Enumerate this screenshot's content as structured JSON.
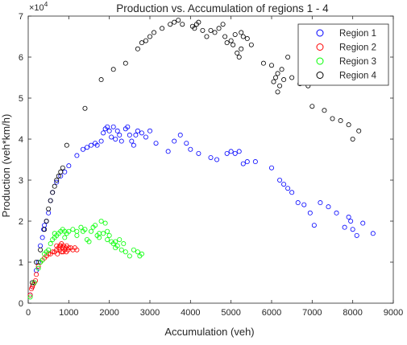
{
  "chart_data": {
    "type": "scatter",
    "title": "Production vs. Accumulation of regions 1 - 4",
    "xlabel": "Accumulation (veh)",
    "ylabel": "Production (veh*km/h)",
    "y_exponent_label": "×10",
    "y_exponent_power": "4",
    "xlim": [
      0,
      9000
    ],
    "ylim": [
      0,
      7
    ],
    "x_ticks": [
      0,
      1000,
      2000,
      3000,
      4000,
      5000,
      6000,
      7000,
      8000,
      9000
    ],
    "x_tick_labels": [
      "0",
      "1000",
      "2000",
      "3000",
      "4000",
      "5000",
      "6000",
      "7000",
      "8000",
      "9000"
    ],
    "y_ticks": [
      0,
      1,
      2,
      3,
      4,
      5,
      6,
      7
    ],
    "y_tick_labels": [
      "0",
      "1",
      "2",
      "3",
      "4",
      "5",
      "6",
      "7"
    ],
    "grid": false,
    "legend_position": "top-right",
    "marker": "open-circle",
    "series": [
      {
        "name": "Region 1",
        "color": "#0000ff",
        "points": [
          [
            50,
            0.2
          ],
          [
            100,
            0.4
          ],
          [
            150,
            0.5
          ],
          [
            200,
            0.8
          ],
          [
            250,
            1.0
          ],
          [
            300,
            1.4
          ],
          [
            350,
            1.6
          ],
          [
            380,
            1.8
          ],
          [
            400,
            1.9
          ],
          [
            450,
            2.0
          ],
          [
            500,
            2.2
          ],
          [
            550,
            2.5
          ],
          [
            600,
            2.7
          ],
          [
            700,
            2.95
          ],
          [
            800,
            3.1
          ],
          [
            900,
            3.2
          ],
          [
            1000,
            3.35
          ],
          [
            1200,
            3.6
          ],
          [
            1350,
            3.75
          ],
          [
            1450,
            3.8
          ],
          [
            1550,
            3.85
          ],
          [
            1650,
            3.9
          ],
          [
            1700,
            3.85
          ],
          [
            1800,
            3.95
          ],
          [
            1850,
            4.15
          ],
          [
            1900,
            4.25
          ],
          [
            1950,
            4.3
          ],
          [
            2000,
            4.2
          ],
          [
            2050,
            4.05
          ],
          [
            2100,
            4.3
          ],
          [
            2150,
            4.0
          ],
          [
            2200,
            4.2
          ],
          [
            2250,
            4.1
          ],
          [
            2300,
            3.95
          ],
          [
            2400,
            4.25
          ],
          [
            2450,
            4.3
          ],
          [
            2500,
            4.1
          ],
          [
            2550,
            3.95
          ],
          [
            2600,
            3.85
          ],
          [
            2650,
            4.1
          ],
          [
            2700,
            4.2
          ],
          [
            2800,
            4.15
          ],
          [
            2900,
            4.05
          ],
          [
            3000,
            4.2
          ],
          [
            3150,
            3.9
          ],
          [
            3450,
            3.7
          ],
          [
            3600,
            3.95
          ],
          [
            3750,
            4.1
          ],
          [
            3900,
            3.9
          ],
          [
            4000,
            3.75
          ],
          [
            4200,
            3.65
          ],
          [
            4500,
            3.55
          ],
          [
            4650,
            3.5
          ],
          [
            4900,
            3.65
          ],
          [
            5000,
            3.7
          ],
          [
            5100,
            3.65
          ],
          [
            5200,
            3.7
          ],
          [
            5300,
            3.4
          ],
          [
            5400,
            3.45
          ],
          [
            5600,
            3.45
          ],
          [
            6000,
            3.3
          ],
          [
            6200,
            3.0
          ],
          [
            6300,
            2.9
          ],
          [
            6400,
            2.8
          ],
          [
            6500,
            2.7
          ],
          [
            6650,
            2.45
          ],
          [
            6800,
            2.4
          ],
          [
            6950,
            2.2
          ],
          [
            7050,
            1.9
          ],
          [
            7200,
            2.45
          ],
          [
            7400,
            2.35
          ],
          [
            7600,
            2.2
          ],
          [
            7800,
            1.85
          ],
          [
            7900,
            2.1
          ],
          [
            7950,
            2.0
          ],
          [
            8000,
            1.8
          ],
          [
            8100,
            1.65
          ],
          [
            8250,
            1.95
          ],
          [
            8500,
            1.7
          ]
        ]
      },
      {
        "name": "Region 2",
        "color": "#ff0000",
        "points": [
          [
            50,
            0.2
          ],
          [
            80,
            0.35
          ],
          [
            100,
            0.4
          ],
          [
            120,
            0.45
          ],
          [
            150,
            0.5
          ],
          [
            180,
            0.55
          ],
          [
            200,
            0.7
          ],
          [
            250,
            0.9
          ],
          [
            300,
            1.0
          ],
          [
            350,
            1.05
          ],
          [
            400,
            1.1
          ],
          [
            450,
            1.15
          ],
          [
            500,
            1.2
          ],
          [
            550,
            1.2
          ],
          [
            600,
            1.25
          ],
          [
            650,
            1.25
          ],
          [
            700,
            1.3
          ],
          [
            720,
            1.2
          ],
          [
            750,
            1.35
          ],
          [
            780,
            1.3
          ],
          [
            800,
            1.4
          ],
          [
            820,
            1.25
          ],
          [
            850,
            1.35
          ],
          [
            870,
            1.4
          ],
          [
            900,
            1.3
          ],
          [
            920,
            1.35
          ],
          [
            950,
            1.4
          ],
          [
            980,
            1.3
          ],
          [
            1000,
            1.35
          ],
          [
            1050,
            1.35
          ],
          [
            1100,
            1.3
          ],
          [
            1150,
            1.35
          ],
          [
            1200,
            1.3
          ],
          [
            780,
            1.4
          ],
          [
            860,
            1.25
          ],
          [
            940,
            1.25
          ],
          [
            700,
            1.4
          ],
          [
            820,
            1.45
          ]
        ]
      },
      {
        "name": "Region 3",
        "color": "#00ff00",
        "points": [
          [
            50,
            0.15
          ],
          [
            150,
            0.5
          ],
          [
            250,
            0.85
          ],
          [
            300,
            1.0
          ],
          [
            350,
            1.05
          ],
          [
            400,
            1.2
          ],
          [
            450,
            1.25
          ],
          [
            500,
            1.3
          ],
          [
            550,
            1.45
          ],
          [
            600,
            1.55
          ],
          [
            650,
            1.6
          ],
          [
            700,
            1.65
          ],
          [
            750,
            1.7
          ],
          [
            800,
            1.75
          ],
          [
            850,
            1.8
          ],
          [
            900,
            1.75
          ],
          [
            950,
            1.7
          ],
          [
            1000,
            1.75
          ],
          [
            1100,
            1.8
          ],
          [
            1200,
            1.75
          ],
          [
            1300,
            1.85
          ],
          [
            1350,
            1.75
          ],
          [
            1400,
            1.8
          ],
          [
            1450,
            1.55
          ],
          [
            1500,
            1.5
          ],
          [
            1550,
            1.75
          ],
          [
            1600,
            1.85
          ],
          [
            1650,
            1.9
          ],
          [
            1700,
            1.65
          ],
          [
            1750,
            1.6
          ],
          [
            1800,
            2.0
          ],
          [
            1850,
            1.7
          ],
          [
            1900,
            1.95
          ],
          [
            1950,
            1.75
          ],
          [
            2000,
            1.65
          ],
          [
            2050,
            1.5
          ],
          [
            2100,
            1.45
          ],
          [
            2150,
            1.35
          ],
          [
            2200,
            1.4
          ],
          [
            2250,
            1.55
          ],
          [
            2300,
            1.3
          ],
          [
            2350,
            1.45
          ],
          [
            2400,
            1.25
          ],
          [
            2500,
            1.15
          ],
          [
            2600,
            1.3
          ],
          [
            2700,
            1.25
          ],
          [
            2750,
            1.15
          ],
          [
            2800,
            1.2
          ],
          [
            650,
            1.7
          ],
          [
            900,
            1.6
          ],
          [
            1200,
            1.65
          ],
          [
            1750,
            1.7
          ],
          [
            1950,
            1.55
          ],
          [
            2150,
            1.5
          ]
        ]
      },
      {
        "name": "Region 4",
        "color": "#000000",
        "points": [
          [
            100,
            0.5
          ],
          [
            200,
            1.0
          ],
          [
            300,
            1.3
          ],
          [
            400,
            1.8
          ],
          [
            450,
            2.0
          ],
          [
            500,
            2.3
          ],
          [
            550,
            2.5
          ],
          [
            600,
            2.7
          ],
          [
            650,
            2.85
          ],
          [
            700,
            3.0
          ],
          [
            750,
            3.1
          ],
          [
            800,
            3.2
          ],
          [
            850,
            3.3
          ],
          [
            950,
            3.85
          ],
          [
            1400,
            4.75
          ],
          [
            1800,
            5.45
          ],
          [
            2100,
            5.7
          ],
          [
            2400,
            5.85
          ],
          [
            2700,
            6.2
          ],
          [
            2800,
            6.35
          ],
          [
            2900,
            6.4
          ],
          [
            3000,
            6.5
          ],
          [
            3100,
            6.6
          ],
          [
            3300,
            6.7
          ],
          [
            3500,
            6.8
          ],
          [
            3600,
            6.85
          ],
          [
            3700,
            6.9
          ],
          [
            3800,
            6.8
          ],
          [
            4050,
            6.75
          ],
          [
            4100,
            6.7
          ],
          [
            4200,
            6.85
          ],
          [
            4300,
            6.65
          ],
          [
            4400,
            6.5
          ],
          [
            4500,
            6.65
          ],
          [
            4600,
            6.6
          ],
          [
            4700,
            6.7
          ],
          [
            4800,
            6.8
          ],
          [
            4850,
            6.5
          ],
          [
            4900,
            6.35
          ],
          [
            5000,
            6.4
          ],
          [
            5050,
            6.3
          ],
          [
            5100,
            6.55
          ],
          [
            5150,
            6.1
          ],
          [
            5200,
            6.0
          ],
          [
            5250,
            6.2
          ],
          [
            5300,
            6.5
          ],
          [
            5400,
            6.45
          ],
          [
            5500,
            6.3
          ],
          [
            5800,
            5.85
          ],
          [
            6000,
            5.8
          ],
          [
            6050,
            5.4
          ],
          [
            6100,
            5.5
          ],
          [
            6150,
            5.6
          ],
          [
            6200,
            5.3
          ],
          [
            6250,
            5.7
          ],
          [
            6300,
            5.45
          ],
          [
            6400,
            6.0
          ],
          [
            6500,
            5.5
          ],
          [
            6700,
            5.35
          ],
          [
            6900,
            5.3
          ],
          [
            7000,
            4.8
          ],
          [
            7300,
            4.7
          ],
          [
            7500,
            4.5
          ],
          [
            7700,
            4.45
          ],
          [
            7900,
            4.35
          ],
          [
            8000,
            4.0
          ],
          [
            8150,
            4.2
          ],
          [
            6150,
            5.15
          ],
          [
            5250,
            6.6
          ],
          [
            4150,
            6.8
          ]
        ]
      }
    ]
  }
}
